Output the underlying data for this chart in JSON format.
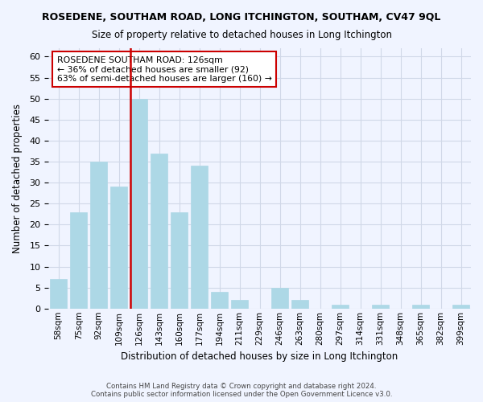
{
  "title": "ROSEDENE, SOUTHAM ROAD, LONG ITCHINGTON, SOUTHAM, CV47 9QL",
  "subtitle": "Size of property relative to detached houses in Long Itchington",
  "xlabel": "Distribution of detached houses by size in Long Itchington",
  "ylabel": "Number of detached properties",
  "footer_line1": "Contains HM Land Registry data © Crown copyright and database right 2024.",
  "footer_line2": "Contains public sector information licensed under the Open Government Licence v3.0.",
  "annotation_line1": "ROSEDENE SOUTHAM ROAD: 126sqm",
  "annotation_line2": "← 36% of detached houses are smaller (92)",
  "annotation_line3": "63% of semi-detached houses are larger (160) →",
  "bar_labels": [
    "58sqm",
    "75sqm",
    "92sqm",
    "109sqm",
    "126sqm",
    "143sqm",
    "160sqm",
    "177sqm",
    "194sqm",
    "211sqm",
    "229sqm",
    "246sqm",
    "263sqm",
    "280sqm",
    "297sqm",
    "314sqm",
    "331sqm",
    "348sqm",
    "365sqm",
    "382sqm",
    "399sqm"
  ],
  "bar_values": [
    7,
    23,
    35,
    29,
    50,
    37,
    23,
    34,
    4,
    2,
    0,
    5,
    2,
    0,
    1,
    0,
    1,
    0,
    1,
    0,
    1
  ],
  "bar_color": "#add8e6",
  "bar_edge_color": "#add8e6",
  "vline_x": 4,
  "vline_color": "#cc0000",
  "grid_color": "#d0d8e8",
  "background_color": "#f0f4ff",
  "annotation_box_color": "#ffffff",
  "annotation_box_edge": "#cc0000",
  "ylim": [
    0,
    62
  ],
  "yticks": [
    0,
    5,
    10,
    15,
    20,
    25,
    30,
    35,
    40,
    45,
    50,
    55,
    60
  ]
}
